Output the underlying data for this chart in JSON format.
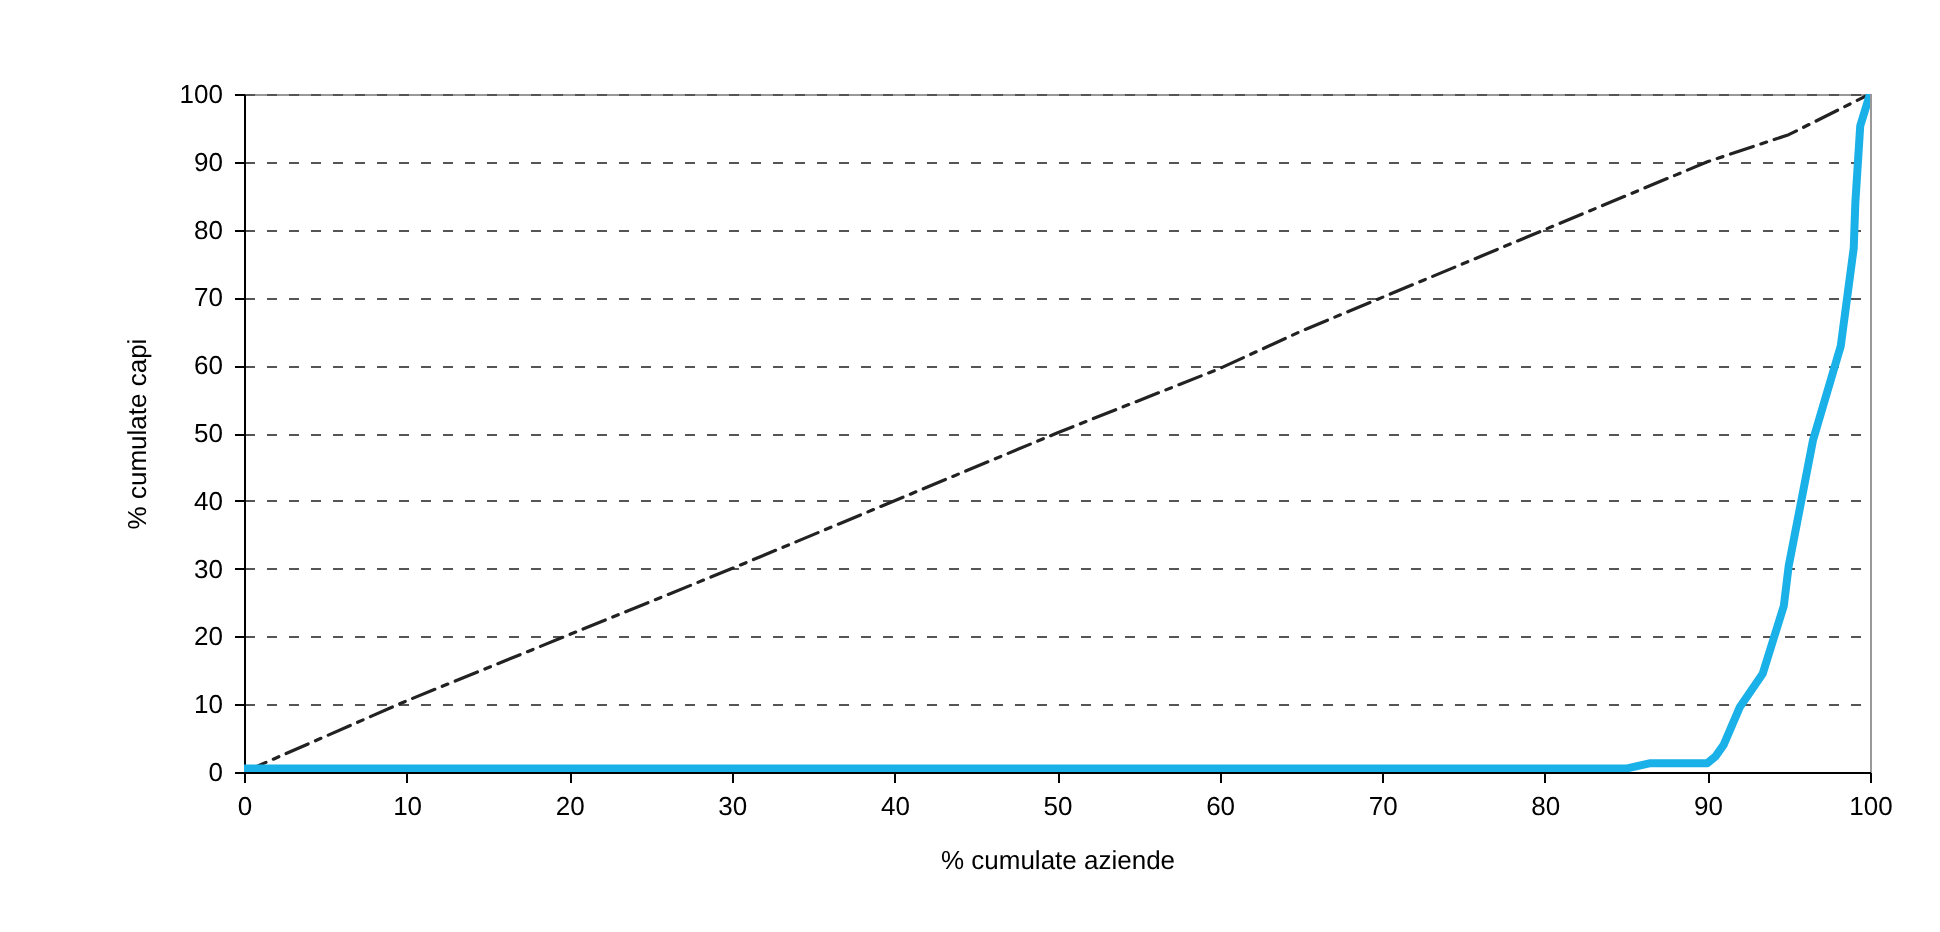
{
  "chart_data": {
    "type": "line",
    "xlabel": "% cumulate aziende",
    "ylabel": "% cumulate capi",
    "xlim": [
      0,
      100
    ],
    "xticks": [
      0,
      10,
      20,
      30,
      40,
      50,
      60,
      70,
      80,
      90,
      100
    ],
    "ylim": [
      0,
      100
    ],
    "yticks": [
      0,
      10,
      20,
      30,
      40,
      50,
      60,
      70,
      80,
      90,
      100
    ],
    "grid": "y",
    "marker": "none",
    "series": [
      {
        "color": "#222222",
        "line_style": "dashed",
        "x": [
          0,
          10,
          30,
          50,
          60,
          65,
          80,
          85,
          88,
          90,
          95,
          100
        ],
        "values": [
          0,
          10.5,
          30,
          50,
          59.5,
          65,
          80,
          85,
          88,
          90,
          94,
          100
        ]
      },
      {
        "color": "#1ab0e8",
        "line_style": "solid",
        "x": [
          0,
          85,
          86.5,
          90,
          90.5,
          91,
          92,
          93.4,
          94.7,
          95,
          96.5,
          98.2,
          99,
          99.1,
          99.4,
          100
        ],
        "values": [
          0.5,
          0.5,
          1.3,
          1.3,
          2.3,
          4,
          9.6,
          14.5,
          24.5,
          30.4,
          49,
          62.8,
          77.3,
          84,
          95.3,
          100
        ]
      }
    ]
  }
}
